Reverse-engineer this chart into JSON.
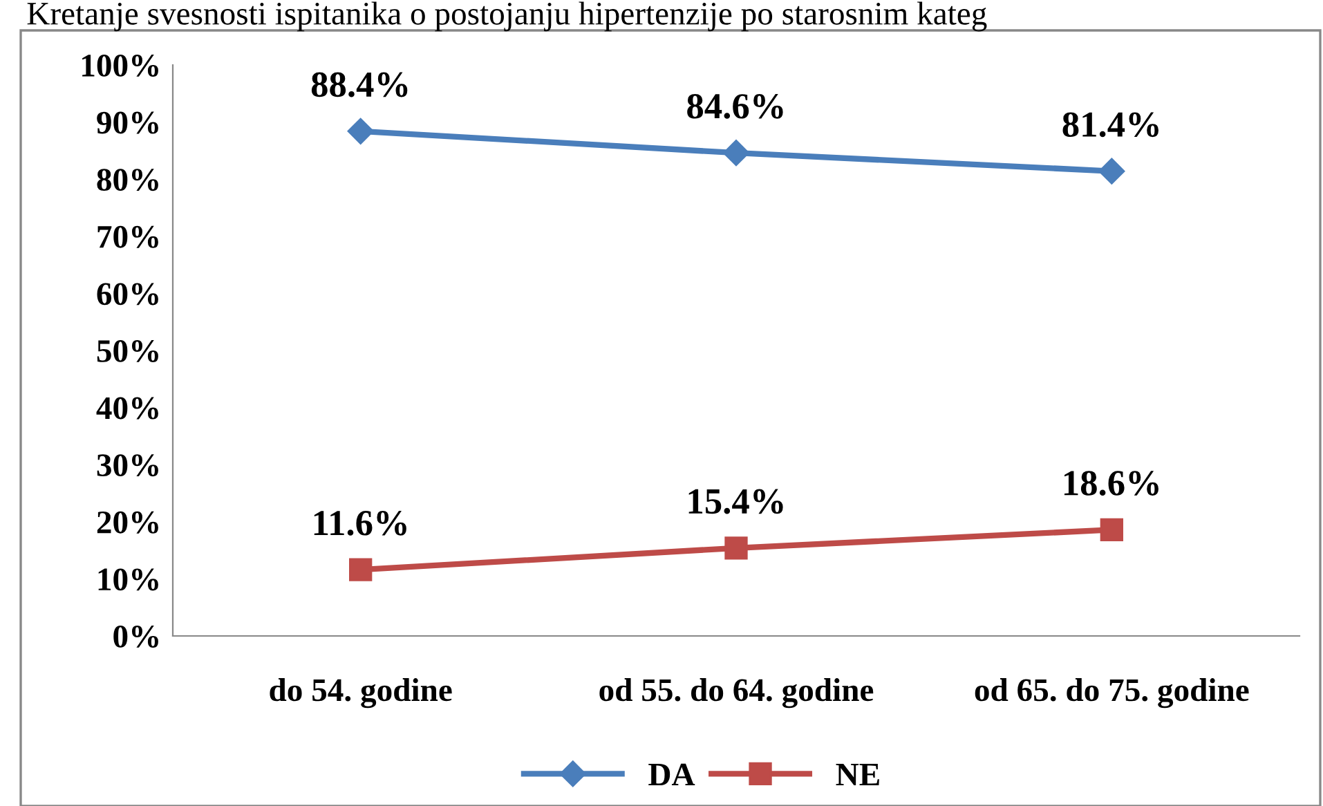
{
  "chart_data": {
    "type": "line",
    "title": "Kretanje svesnosti ispitanika o postojanju hipertenzije po starosnim kateg",
    "categories": [
      "do 54. godine",
      "od 55. do 64. godine",
      "od 65. do 75. godine"
    ],
    "series": [
      {
        "name": "DA",
        "color": "#4a7ebb",
        "values": [
          88.4,
          84.6,
          81.4
        ],
        "marker": "diamond"
      },
      {
        "name": "NE",
        "color": "#be4b48",
        "values": [
          11.6,
          15.4,
          18.6
        ],
        "marker": "square"
      }
    ],
    "value_labels": [
      [
        "88.4%",
        "84.6%",
        "81.4%"
      ],
      [
        "11.6%",
        "15.4%",
        "18.6%"
      ]
    ],
    "ylim": [
      0,
      100
    ],
    "yticks": [
      {
        "value": 0,
        "label": "0%"
      },
      {
        "value": 10,
        "label": "10%"
      },
      {
        "value": 20,
        "label": "20%"
      },
      {
        "value": 30,
        "label": "30%"
      },
      {
        "value": 40,
        "label": "40%"
      },
      {
        "value": 50,
        "label": "50%"
      },
      {
        "value": 60,
        "label": "60%"
      },
      {
        "value": 70,
        "label": "70%"
      },
      {
        "value": 80,
        "label": "80%"
      },
      {
        "value": 90,
        "label": "90%"
      },
      {
        "value": 100,
        "label": "100%"
      }
    ],
    "grid": false,
    "legend": "bottom",
    "line_style": "solid"
  }
}
